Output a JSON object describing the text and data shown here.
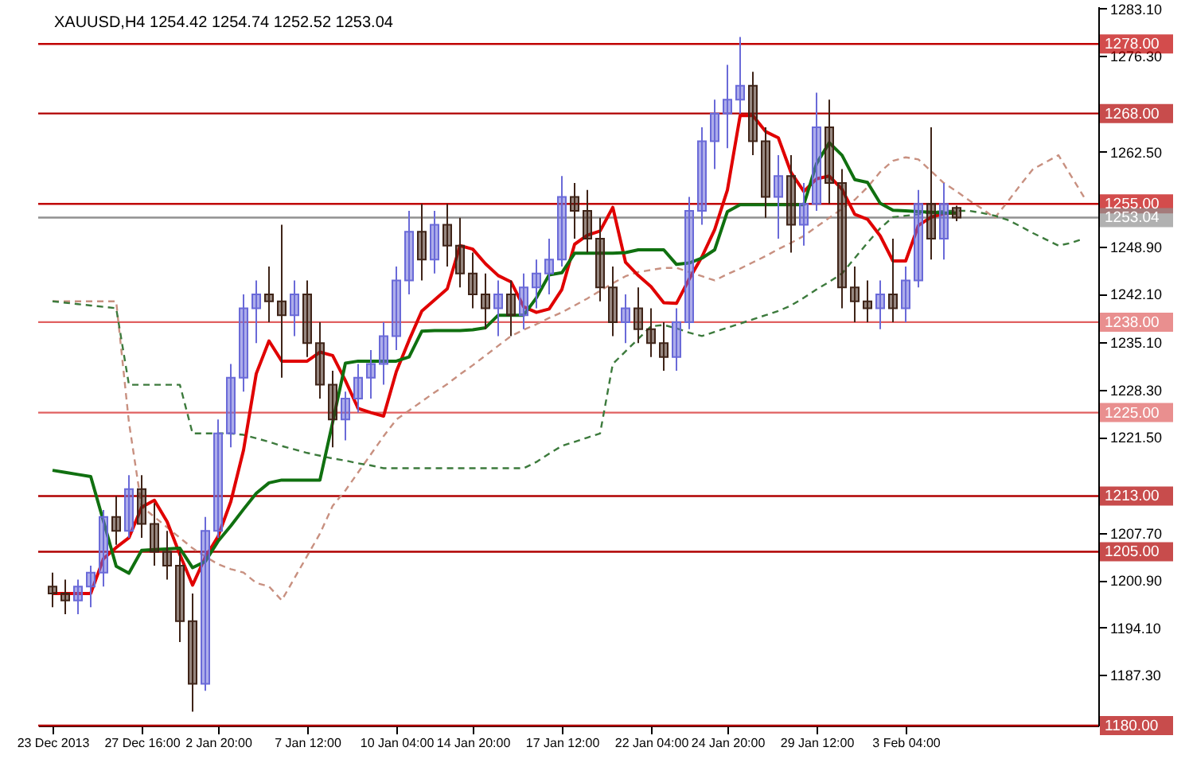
{
  "chart_data": {
    "type": "candlestick",
    "title": "XAUUSD,H4  1254.42 1254.74 1252.52 1253.04",
    "categories": [
      "23 Dec 2013",
      null,
      null,
      null,
      null,
      null,
      null,
      "27 Dec 16:00",
      null,
      null,
      null,
      null,
      null,
      "2 Jan 20:00",
      null,
      null,
      null,
      null,
      null,
      null,
      "7 Jan 12:00",
      null,
      null,
      null,
      null,
      null,
      null,
      "10 Jan 04:00",
      null,
      null,
      null,
      null,
      null,
      "14 Jan 20:00",
      null,
      null,
      null,
      null,
      null,
      null,
      "17 Jan 12:00",
      null,
      null,
      null,
      null,
      null,
      null,
      "22 Jan 04:00",
      null,
      null,
      null,
      null,
      null,
      "24 Jan 20:00",
      null,
      null,
      null,
      null,
      null,
      null,
      "29 Jan 12:00",
      null,
      null,
      null,
      null,
      null,
      null,
      "3 Feb 04:00",
      null,
      null,
      null,
      null,
      null,
      null,
      null,
      null,
      null,
      null,
      null,
      null,
      null,
      null
    ],
    "ylim": [
      1180,
      1283.4
    ],
    "yticks": [
      {
        "value": 1283.1,
        "label": "1283.10"
      },
      {
        "value": 1276.3,
        "label": "1276.30"
      },
      {
        "value": 1262.5,
        "label": "1262.50"
      },
      {
        "value": 1248.9,
        "label": "1248.90"
      },
      {
        "value": 1242.1,
        "label": "1242.10"
      },
      {
        "value": 1235.1,
        "label": "1235.10"
      },
      {
        "value": 1228.3,
        "label": "1228.30"
      },
      {
        "value": 1221.5,
        "label": "1221.50"
      },
      {
        "value": 1207.7,
        "label": "1207.70"
      },
      {
        "value": 1200.9,
        "label": "1200.90"
      },
      {
        "value": 1194.1,
        "label": "1194.10"
      },
      {
        "value": 1187.3,
        "label": "1187.30"
      }
    ],
    "ref_lines": [
      {
        "axis": "y",
        "value": 1278,
        "label": "1278.00",
        "color": "#c00000"
      },
      {
        "axis": "y",
        "value": 1268,
        "label": "1268.00",
        "color": "#b00000"
      },
      {
        "axis": "y",
        "value": 1255,
        "label": "1255.00",
        "color": "#c00000"
      },
      {
        "axis": "y",
        "value": 1253.04,
        "label": "1253.04",
        "color": "#909090"
      },
      {
        "axis": "y",
        "value": 1238,
        "label": "1238.00",
        "color": "#e06060"
      },
      {
        "axis": "y",
        "value": 1225,
        "label": "1225.00",
        "color": "#e06060"
      },
      {
        "axis": "y",
        "value": 1213,
        "label": "1213.00",
        "color": "#b00000"
      },
      {
        "axis": "y",
        "value": 1205,
        "label": "1205.00",
        "color": "#b00000"
      },
      {
        "axis": "y",
        "value": 1180,
        "label": "1180.00",
        "color": "#b00000"
      }
    ],
    "series": [
      {
        "type": "line",
        "color": "#c89080",
        "line_style": "dashed",
        "values": [
          1241,
          1241,
          1241,
          1241,
          1241,
          1241,
          1223.6,
          1211.5,
          1210,
          1208.5,
          1207,
          1205.5,
          1204.3,
          1203.2,
          1202.5,
          1202,
          1200.5,
          1200,
          1198,
          1201.2,
          1204.4,
          1207.6,
          1211.6,
          1213.8,
          1216.4,
          1219,
          1221.6,
          1224,
          1225.3,
          1226.6,
          1227.9,
          1229.1,
          1230.5,
          1231.8,
          1233.2,
          1234.6,
          1236,
          1236.9,
          1237.7,
          1238.6,
          1239.4,
          1240.4,
          1241.4,
          1242.5,
          1243.6,
          1244.6,
          1245.2,
          1245.5,
          1245.8,
          1245.8,
          1245.2,
          1244.6,
          1244,
          1244.9,
          1245.7,
          1246.6,
          1247.5,
          1248.5,
          1249.4,
          1250.4,
          1251.7,
          1253,
          1254.3,
          1255.6,
          1257.4,
          1259.6,
          1261.2,
          1261.7,
          1261.4,
          1259.7,
          1258,
          1256.8,
          1255.5,
          1254.3,
          1253,
          1255.3,
          1257.7,
          1260,
          1261,
          1262,
          1259,
          1256
        ]
      },
      {
        "type": "line",
        "color": "#3c7a3c",
        "line_style": "dashed",
        "values": [
          1241,
          1240.8,
          1240.6,
          1240.4,
          1240.2,
          1240,
          1229,
          1229,
          1229,
          1229,
          1229,
          1222,
          1222,
          1222,
          1222,
          1221.8,
          1221.3,
          1220.8,
          1220.2,
          1219.7,
          1219.2,
          1218.8,
          1218.4,
          1218.1,
          1217.7,
          1217.4,
          1217,
          1217,
          1217,
          1217,
          1217,
          1217,
          1217,
          1217,
          1217,
          1217,
          1217,
          1217,
          1217.9,
          1219.1,
          1220.2,
          1220.8,
          1221.4,
          1222,
          1232,
          1233.8,
          1235.6,
          1237.4,
          1237.6,
          1237.1,
          1236.5,
          1236,
          1236.6,
          1237.2,
          1237.8,
          1238.4,
          1239,
          1239.6,
          1240.4,
          1241.5,
          1242.7,
          1243.8,
          1245,
          1247.2,
          1249.4,
          1251.5,
          1253.1,
          1253.3,
          1253.5,
          1253.8,
          1254,
          1254,
          1254,
          1253.7,
          1253.3,
          1252.7,
          1251.8,
          1250.8,
          1249.9,
          1249,
          1249.4,
          1250
        ]
      },
      {
        "ohlc": [
          [
            1200,
            1202,
            1197,
            1199
          ],
          [
            1199,
            1201,
            1196,
            1198
          ],
          [
            1198,
            1201,
            1196,
            1200
          ],
          [
            1200,
            1203,
            1197,
            1202
          ],
          [
            1202,
            1211,
            1200,
            1210
          ],
          [
            1210,
            1213,
            1206,
            1208
          ],
          [
            1208,
            1216,
            1207,
            1214
          ],
          [
            1214,
            1216,
            1207,
            1209
          ],
          [
            1209,
            1212,
            1203,
            1205
          ],
          [
            1205,
            1208,
            1201,
            1203
          ],
          [
            1203,
            1205,
            1192,
            1195
          ],
          [
            1195,
            1199,
            1182,
            1186
          ],
          [
            1186,
            1210,
            1185,
            1208
          ],
          [
            1208,
            1224,
            1207,
            1222
          ],
          [
            1222,
            1232,
            1220,
            1230
          ],
          [
            1230,
            1242,
            1228,
            1240
          ],
          [
            1240,
            1244,
            1235,
            1242
          ],
          [
            1242,
            1246,
            1238,
            1241
          ],
          [
            1241,
            1252,
            1230,
            1239
          ],
          [
            1239,
            1244,
            1236,
            1242
          ],
          [
            1242,
            1244,
            1233,
            1235
          ],
          [
            1235,
            1238,
            1227,
            1229
          ],
          [
            1229,
            1231,
            1220,
            1224
          ],
          [
            1224,
            1228,
            1221,
            1227
          ],
          [
            1227,
            1232,
            1225,
            1230
          ],
          [
            1230,
            1234,
            1227,
            1232
          ],
          [
            1232,
            1238,
            1229,
            1236
          ],
          [
            1236,
            1246,
            1234,
            1244
          ],
          [
            1244,
            1254,
            1242,
            1251
          ],
          [
            1251,
            1255,
            1244,
            1247
          ],
          [
            1247,
            1254,
            1245,
            1252
          ],
          [
            1252,
            1255,
            1246,
            1249
          ],
          [
            1249,
            1253,
            1243,
            1245
          ],
          [
            1245,
            1248,
            1240,
            1242
          ],
          [
            1242,
            1245,
            1237,
            1240
          ],
          [
            1240,
            1244,
            1236,
            1242
          ],
          [
            1242,
            1244,
            1236,
            1239
          ],
          [
            1239,
            1245,
            1237,
            1243
          ],
          [
            1243,
            1247,
            1240,
            1245
          ],
          [
            1245,
            1250,
            1242,
            1247
          ],
          [
            1247,
            1259,
            1246,
            1256
          ],
          [
            1256,
            1258,
            1250,
            1254
          ],
          [
            1254,
            1257,
            1248,
            1250
          ],
          [
            1250,
            1253,
            1241,
            1243
          ],
          [
            1243,
            1246,
            1236,
            1238
          ],
          [
            1238,
            1242,
            1235,
            1240
          ],
          [
            1240,
            1243,
            1235,
            1237
          ],
          [
            1237,
            1240,
            1233,
            1235
          ],
          [
            1235,
            1238,
            1231,
            1233
          ],
          [
            1233,
            1240,
            1231,
            1238
          ],
          [
            1238,
            1256,
            1237,
            1254
          ],
          [
            1254,
            1266,
            1252,
            1264
          ],
          [
            1264,
            1270,
            1260,
            1268
          ],
          [
            1268,
            1275,
            1263,
            1270
          ],
          [
            1270,
            1279,
            1268,
            1272
          ],
          [
            1272,
            1274,
            1262,
            1264
          ],
          [
            1264,
            1266,
            1253,
            1256
          ],
          [
            1256,
            1262,
            1250,
            1259
          ],
          [
            1259,
            1262,
            1248,
            1252
          ],
          [
            1252,
            1258,
            1249,
            1255
          ],
          [
            1255,
            1271,
            1254,
            1266
          ],
          [
            1266,
            1270,
            1255,
            1258
          ],
          [
            1258,
            1260,
            1240,
            1243
          ],
          [
            1243,
            1246,
            1238,
            1241
          ],
          [
            1241,
            1244,
            1238,
            1240
          ],
          [
            1240,
            1244,
            1237,
            1242
          ],
          [
            1242,
            1250,
            1238,
            1240
          ],
          [
            1240,
            1246,
            1238,
            1244
          ],
          [
            1244,
            1257,
            1243,
            1255
          ],
          [
            1255,
            1266,
            1247,
            1250
          ],
          [
            1250,
            1258,
            1247,
            1255
          ],
          [
            1254.42,
            1254.74,
            1252.52,
            1253.04
          ],
          null,
          null,
          null,
          null,
          null,
          null,
          null,
          null,
          null,
          null
        ],
        "colors": [
          "#3f2418",
          "#3f2418",
          "#6a6ad8",
          "#6a6ad8",
          "#6a6ad8",
          "#3f2418",
          "#6a6ad8",
          "#3f2418",
          "#3f2418",
          "#3f2418",
          "#3f2418",
          "#3f2418",
          "#6a6ad8",
          "#6a6ad8",
          "#6a6ad8",
          "#6a6ad8",
          "#6a6ad8",
          "#3f2418",
          "#3f2418",
          "#6a6ad8",
          "#3f2418",
          "#3f2418",
          "#3f2418",
          "#6a6ad8",
          "#6a6ad8",
          "#6a6ad8",
          "#6a6ad8",
          "#6a6ad8",
          "#6a6ad8",
          "#3f2418",
          "#6a6ad8",
          "#3f2418",
          "#3f2418",
          "#3f2418",
          "#3f2418",
          "#6a6ad8",
          "#3f2418",
          "#6a6ad8",
          "#6a6ad8",
          "#6a6ad8",
          "#6a6ad8",
          "#3f2418",
          "#3f2418",
          "#3f2418",
          "#3f2418",
          "#6a6ad8",
          "#3f2418",
          "#3f2418",
          "#3f2418",
          "#6a6ad8",
          "#6a6ad8",
          "#6a6ad8",
          "#6a6ad8",
          "#6a6ad8",
          "#6a6ad8",
          "#3f2418",
          "#3f2418",
          "#6a6ad8",
          "#3f2418",
          "#6a6ad8",
          "#6a6ad8",
          "#3f2418",
          "#3f2418",
          "#3f2418",
          "#3f2418",
          "#6a6ad8",
          "#3f2418",
          "#6a6ad8",
          "#6a6ad8",
          "#3f2418",
          "#6a6ad8",
          "#3f2418",
          null,
          null,
          null,
          null,
          null,
          null,
          null,
          null,
          null,
          null
        ]
      },
      {
        "type": "line",
        "color": "#e00000",
        "values": [
          1199,
          1199,
          1199,
          1199,
          1204,
          1205.6,
          1207,
          1211.4,
          1212.4,
          1209.3,
          1204.6,
          1200.2,
          1204.2,
          1207.2,
          1212.2,
          1219.6,
          1230.6,
          1235.3,
          1232.4,
          1232.4,
          1232.4,
          1233.7,
          1233.2,
          1229.6,
          1225.6,
          1225,
          1224.5,
          1230.9,
          1235.4,
          1239.6,
          1241.2,
          1242.8,
          1249,
          1248.5,
          1246.4,
          1244.7,
          1243.8,
          1240.2,
          1239.4,
          1239.9,
          1242.7,
          1249.2,
          1250.5,
          1251.1,
          1254.5,
          1246.6,
          1244.7,
          1243.1,
          1240.8,
          1240.7,
          1244.2,
          1247.4,
          1251.3,
          1257,
          1267.7,
          1267.7,
          1265.4,
          1264.5,
          1259.5,
          1256.8,
          1258.6,
          1259,
          1257.1,
          1253.5,
          1252.8,
          1250.4,
          1246.8,
          1246.8,
          1251.9,
          1253.1,
          1253.6,
          1253.7,
          null,
          null,
          null,
          null,
          null,
          null,
          null,
          null,
          null,
          null
        ]
      },
      {
        "type": "line",
        "color": "#107010",
        "values": [
          1216.7,
          1216.4,
          1216.1,
          1215.8,
          1209.4,
          1202.9,
          1201.9,
          1205.2,
          1205.3,
          1205.4,
          1205.5,
          1202.7,
          1203.6,
          1206.5,
          1208.7,
          1211.1,
          1213.4,
          1214.9,
          1215.3,
          1215.3,
          1215.3,
          1215.3,
          1223.6,
          1232.1,
          1232.4,
          1232.4,
          1232.4,
          1232.4,
          1233,
          1236.7,
          1236.8,
          1236.8,
          1236.8,
          1236.9,
          1237.2,
          1239,
          1239,
          1239,
          1241.5,
          1244.8,
          1245.1,
          1247.9,
          1247.9,
          1247.9,
          1247.9,
          1248,
          1248.4,
          1248.4,
          1248.4,
          1246.3,
          1246.5,
          1247.2,
          1248.4,
          1253.9,
          1254.9,
          1254.9,
          1254.9,
          1254.9,
          1254.9,
          1254.9,
          1260.8,
          1263.8,
          1262,
          1258.5,
          1258.1,
          1255.1,
          1254.1,
          1254,
          1253.9,
          1253.8,
          1253.7,
          1253.7,
          null,
          null,
          null,
          null,
          null,
          null,
          null,
          null,
          null,
          null
        ]
      }
    ]
  }
}
